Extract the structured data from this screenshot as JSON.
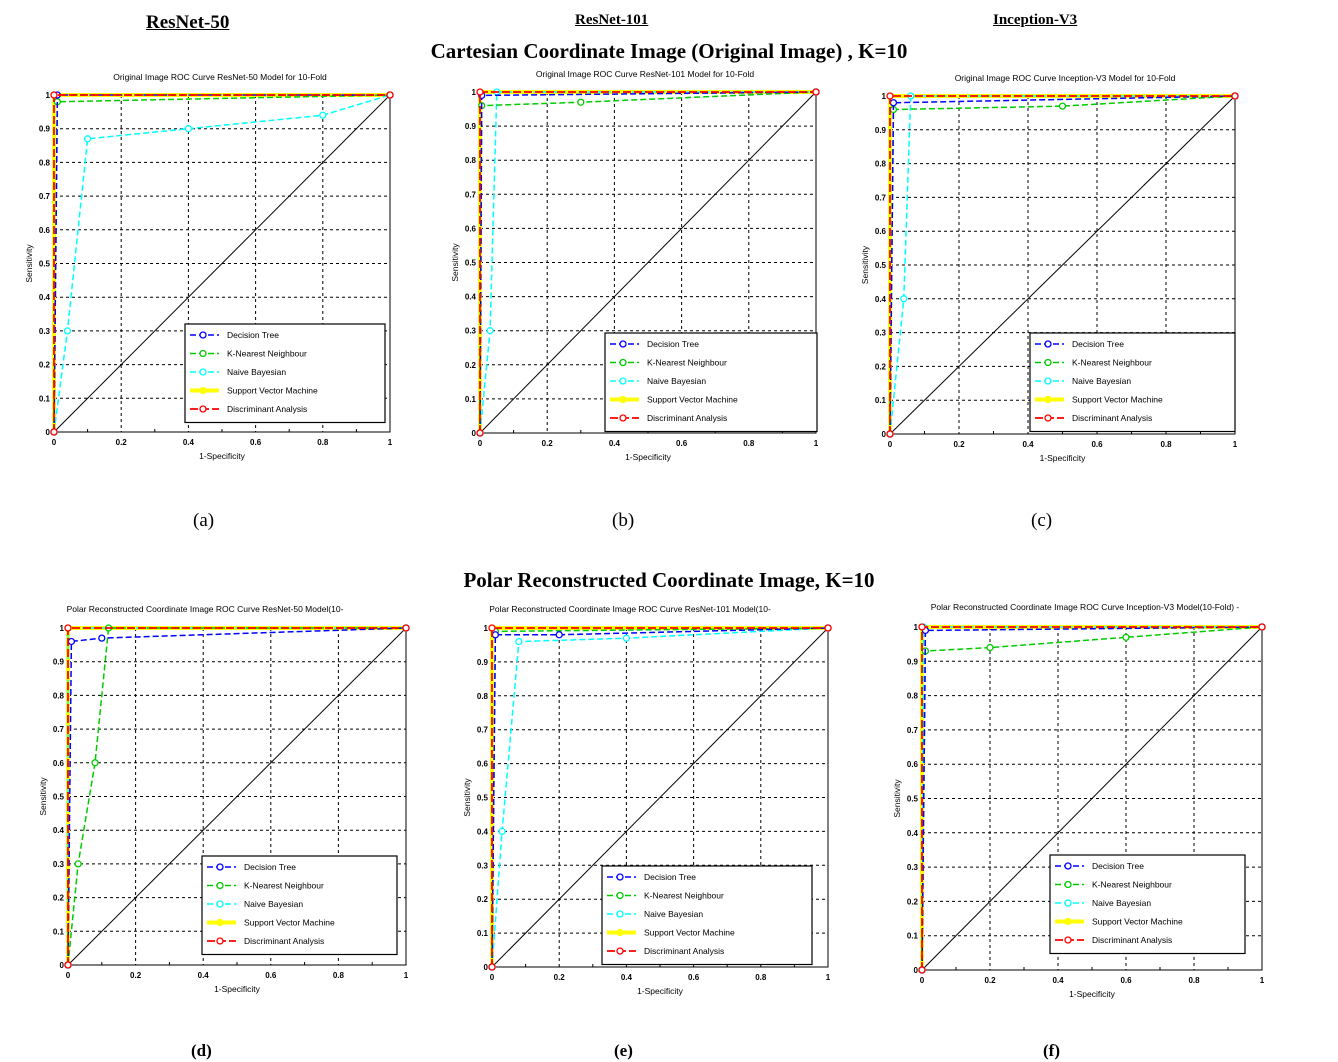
{
  "headers": {
    "col1": "ResNet-50",
    "col2": "ResNet-101",
    "col3": "Inception-V3",
    "section1": "Cartesian Coordinate Image (Original Image) , K=10",
    "section2": "Polar Reconstructed Coordinate Image, K=10"
  },
  "captions": [
    "(a)",
    "(b)",
    "(c)",
    "(d)",
    "(e)",
    "(f)"
  ],
  "colors": {
    "Decision Tree": "#0000ff",
    "K-Nearest Neighbour": "#00cc00",
    "Naive Bayesian": "#00ffff",
    "Support Vector Machine": "#ffff00",
    "Discriminant Analysis": "#ff0000",
    "diagonal": "#000000"
  },
  "chart_data": [
    {
      "type": "line",
      "title": "Original Image ROC Curve ResNet-50 Model for 10-Fold",
      "xlabel": "1-Specificity",
      "ylabel": "Sensitivity",
      "xlim": [
        0,
        1
      ],
      "ylim": [
        0,
        1
      ],
      "grid": true,
      "legend_position": "bottom-right",
      "series": [
        {
          "name": "Decision Tree",
          "x": [
            0,
            0.01,
            1
          ],
          "y": [
            0,
            1,
            1
          ]
        },
        {
          "name": "K-Nearest Neighbour",
          "x": [
            0,
            0.01,
            1
          ],
          "y": [
            0,
            0.98,
            1
          ]
        },
        {
          "name": "Naive Bayesian",
          "x": [
            0,
            0.04,
            0.1,
            0.4,
            0.8,
            1
          ],
          "y": [
            0,
            0.3,
            0.87,
            0.9,
            0.94,
            1
          ]
        },
        {
          "name": "Support Vector Machine",
          "x": [
            0,
            0,
            1
          ],
          "y": [
            0,
            1,
            1
          ]
        },
        {
          "name": "Discriminant Analysis",
          "x": [
            0,
            0,
            1
          ],
          "y": [
            0,
            1,
            1
          ]
        }
      ]
    },
    {
      "type": "line",
      "title": "Original Image ROC Curve ResNet-101 Model for 10-Fold",
      "xlabel": "1-Specificity",
      "ylabel": "Sensitivity",
      "xlim": [
        0,
        1
      ],
      "ylim": [
        0,
        1
      ],
      "grid": true,
      "legend_position": "bottom-right",
      "series": [
        {
          "name": "Decision Tree",
          "x": [
            0,
            0.005,
            1
          ],
          "y": [
            0,
            0.99,
            1
          ]
        },
        {
          "name": "K-Nearest Neighbour",
          "x": [
            0,
            0.005,
            0.3,
            1
          ],
          "y": [
            0,
            0.96,
            0.97,
            1
          ]
        },
        {
          "name": "Naive Bayesian",
          "x": [
            0,
            0.03,
            0.05,
            1
          ],
          "y": [
            0,
            0.3,
            1,
            1
          ]
        },
        {
          "name": "Support Vector Machine",
          "x": [
            0,
            0,
            1
          ],
          "y": [
            0,
            1,
            1
          ]
        },
        {
          "name": "Discriminant Analysis",
          "x": [
            0,
            0,
            1
          ],
          "y": [
            0,
            1,
            1
          ]
        }
      ]
    },
    {
      "type": "line",
      "title": "Original Image ROC Curve Inception-V3 Model for 10-Fold",
      "xlabel": "1-Specificity",
      "ylabel": "Sensitivity",
      "xlim": [
        0,
        1
      ],
      "ylim": [
        0,
        1
      ],
      "grid": true,
      "legend_position": "bottom-right",
      "series": [
        {
          "name": "Decision Tree",
          "x": [
            0,
            0.01,
            1
          ],
          "y": [
            0,
            0.98,
            1
          ]
        },
        {
          "name": "K-Nearest Neighbour",
          "x": [
            0,
            0.01,
            0.5,
            1
          ],
          "y": [
            0,
            0.96,
            0.97,
            1
          ]
        },
        {
          "name": "Naive Bayesian",
          "x": [
            0,
            0.04,
            0.06,
            1
          ],
          "y": [
            0,
            0.4,
            1,
            1
          ]
        },
        {
          "name": "Support Vector Machine",
          "x": [
            0,
            0,
            1
          ],
          "y": [
            0,
            1,
            1
          ]
        },
        {
          "name": "Discriminant Analysis",
          "x": [
            0,
            0,
            1
          ],
          "y": [
            0,
            1,
            1
          ]
        }
      ]
    },
    {
      "type": "line",
      "title": "Polar Reconstructed Coordinate Image ROC Curve ResNet-50 Model(10-",
      "xlabel": "1-Specificity",
      "ylabel": "Sensitivity",
      "xlim": [
        0,
        1
      ],
      "ylim": [
        0,
        1
      ],
      "grid": true,
      "legend_position": "bottom-right",
      "series": [
        {
          "name": "Decision Tree",
          "x": [
            0,
            0.01,
            0.1,
            1
          ],
          "y": [
            0,
            0.96,
            0.97,
            1
          ]
        },
        {
          "name": "K-Nearest Neighbour",
          "x": [
            0,
            0.03,
            0.08,
            0.12,
            1
          ],
          "y": [
            0,
            0.3,
            0.6,
            1,
            1
          ]
        },
        {
          "name": "Naive Bayesian",
          "x": [
            0,
            0,
            1
          ],
          "y": [
            0,
            1,
            1
          ]
        },
        {
          "name": "Support Vector Machine",
          "x": [
            0,
            0,
            1
          ],
          "y": [
            0,
            1,
            1
          ]
        },
        {
          "name": "Discriminant Analysis",
          "x": [
            0,
            0,
            1
          ],
          "y": [
            0,
            1,
            1
          ]
        }
      ]
    },
    {
      "type": "line",
      "title": "Polar Reconstructed Coordinate Image ROC Curve ResNet-101 Model(10-",
      "xlabel": "1-Specificity",
      "ylabel": "Sensitivity",
      "xlim": [
        0,
        1
      ],
      "ylim": [
        0,
        1
      ],
      "grid": true,
      "legend_position": "bottom-right",
      "series": [
        {
          "name": "Decision Tree",
          "x": [
            0,
            0.01,
            0.2,
            1
          ],
          "y": [
            0,
            0.98,
            0.98,
            1
          ]
        },
        {
          "name": "K-Nearest Neighbour",
          "x": [
            0,
            0.01,
            1
          ],
          "y": [
            0,
            0.99,
            1
          ]
        },
        {
          "name": "Naive Bayesian",
          "x": [
            0,
            0.03,
            0.08,
            0.4,
            1
          ],
          "y": [
            0,
            0.4,
            0.96,
            0.97,
            1
          ]
        },
        {
          "name": "Support Vector Machine",
          "x": [
            0,
            0,
            1
          ],
          "y": [
            0,
            1,
            1
          ]
        },
        {
          "name": "Discriminant Analysis",
          "x": [
            0,
            0,
            1
          ],
          "y": [
            0,
            1,
            1
          ]
        }
      ]
    },
    {
      "type": "line",
      "title": "Polar Reconstructed Coordinate Image ROC Curve Inception-V3 Model(10-Fold) -",
      "xlabel": "1-Specificity",
      "ylabel": "Sensitivity",
      "xlim": [
        0,
        1
      ],
      "ylim": [
        0,
        1
      ],
      "grid": true,
      "legend_position": "bottom-right",
      "series": [
        {
          "name": "Decision Tree",
          "x": [
            0,
            0.01,
            1
          ],
          "y": [
            0,
            0.99,
            1
          ]
        },
        {
          "name": "K-Nearest Neighbour",
          "x": [
            0,
            0.01,
            0.2,
            0.6,
            1
          ],
          "y": [
            0,
            0.93,
            0.94,
            0.97,
            1
          ]
        },
        {
          "name": "Naive Bayesian",
          "x": [
            0,
            0.005,
            1
          ],
          "y": [
            0,
            1,
            1
          ]
        },
        {
          "name": "Support Vector Machine",
          "x": [
            0,
            0,
            1
          ],
          "y": [
            0,
            1,
            1
          ]
        },
        {
          "name": "Discriminant Analysis",
          "x": [
            0,
            0,
            1
          ],
          "y": [
            0,
            1,
            1
          ]
        }
      ]
    }
  ]
}
